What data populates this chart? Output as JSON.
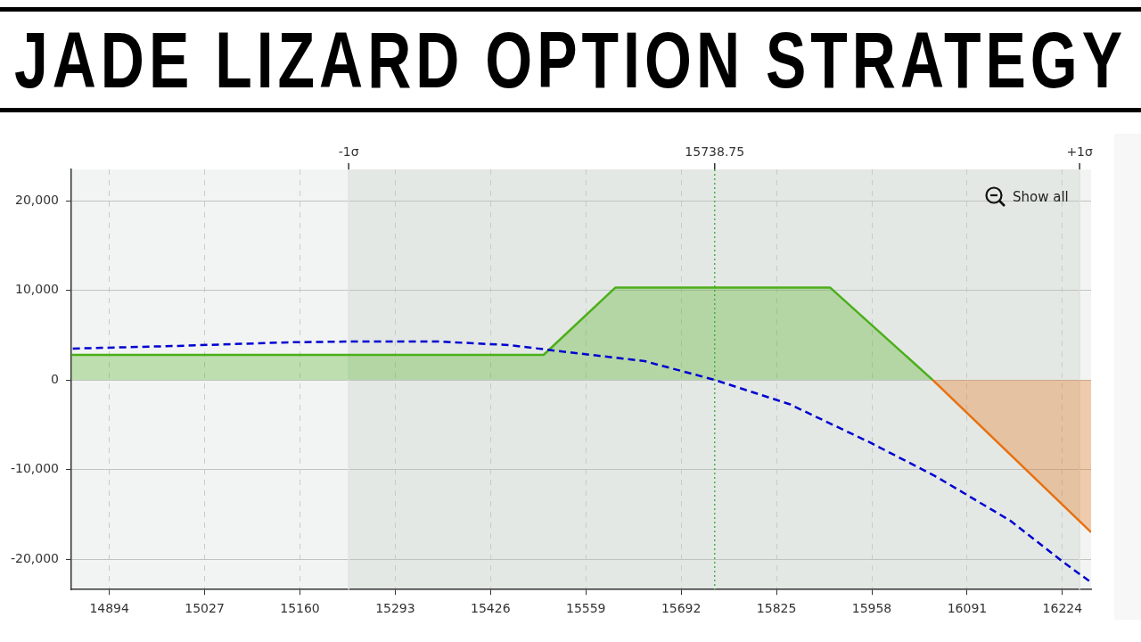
{
  "chart_data": {
    "type": "area",
    "title": "JADE LIZARD OPTION STRATEGY",
    "xlim": [
      14841,
      16264
    ],
    "xticks": [
      14894,
      15027,
      15160,
      15293,
      15426,
      15559,
      15692,
      15825,
      15958,
      16091,
      16224
    ],
    "ylim": [
      -23400,
      23500
    ],
    "yticks": [
      {
        "value": -20000,
        "label": "-20,000"
      },
      {
        "value": -10000,
        "label": "-10,000"
      },
      0,
      {
        "value": 10000,
        "label": "10,000"
      },
      {
        "value": 20000,
        "label": "20,000"
      }
    ],
    "series": [
      {
        "color": "#4caf1a",
        "x": [
          14841,
          15500,
          15600,
          15900,
          16043
        ],
        "values": [
          2800,
          2800,
          10300,
          10300,
          0
        ]
      },
      {
        "color": "#e8700f",
        "x": [
          16043,
          16264
        ],
        "values": [
          0,
          -17000
        ]
      },
      {
        "type": "line",
        "color": "#0000d0",
        "line_style": "dashed",
        "marker": "none",
        "x": [
          14843,
          14990,
          15144,
          15247,
          15349,
          15451,
          15534,
          15641,
          15739,
          15843,
          15956,
          16048,
          16151,
          16223,
          16264
        ],
        "values": [
          3500,
          3800,
          4200,
          4300,
          4300,
          3900,
          3100,
          2100,
          0,
          -2700,
          -7000,
          -10800,
          -15700,
          -20200,
          -22600
        ]
      }
    ],
    "bands": [
      {
        "axis": "x",
        "from": 15228,
        "to": 16248,
        "color": "#e3e8e5"
      }
    ],
    "ref_lines": [
      {
        "axis": "x",
        "value": 15228,
        "label": "-1σ",
        "color": "#dde2df"
      },
      {
        "axis": "x",
        "value": 15738.75,
        "label": "15738.75",
        "color": "#4caf50",
        "line_style": "dotted"
      },
      {
        "axis": "x",
        "value": 16248,
        "label": "+1σ",
        "color": "#dde2df"
      }
    ],
    "annotations": [
      "Show all"
    ],
    "grid": true,
    "legend": false
  }
}
